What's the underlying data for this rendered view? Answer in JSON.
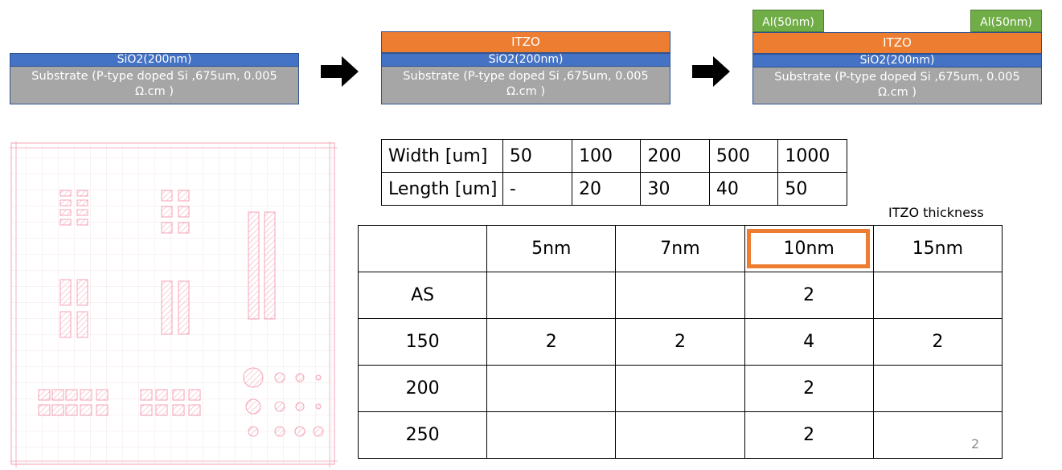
{
  "stacks": [
    {
      "sio2": "SiO2(200nm)",
      "substrate": "Substrate (P-type doped Si ,675um, 0.005 Ω.cm )"
    },
    {
      "itzo": "ITZO",
      "sio2": "SiO2(200nm)",
      "substrate": "Substrate (P-type doped Si ,675um, 0.005 Ω.cm )"
    },
    {
      "al_left": "Al(50nm)",
      "al_right": "Al(50nm)",
      "itzo": "ITZO",
      "sio2": "SiO2(200nm)",
      "substrate": "Substrate (P-type doped Si ,675um, 0.005 Ω.cm )"
    }
  ],
  "dimension_table": {
    "rows": [
      {
        "label": "Width [um]",
        "cells": [
          "50",
          "100",
          "200",
          "500",
          "1000"
        ]
      },
      {
        "label": "Length [um]",
        "cells": [
          "-",
          "20",
          "30",
          "40",
          "50"
        ]
      }
    ]
  },
  "thickness_caption": "ITZO thickness",
  "sample_table": {
    "header": [
      "",
      "5nm",
      "7nm",
      "10nm",
      "15nm"
    ],
    "rows": [
      [
        "AS",
        "",
        "",
        "2",
        ""
      ],
      [
        "150",
        "2",
        "2",
        "4",
        "2"
      ],
      [
        "200",
        "",
        "",
        "2",
        ""
      ],
      [
        "250",
        "",
        "",
        "2",
        ""
      ]
    ],
    "highlighted_column": "10nm"
  },
  "slide_number": "2",
  "colors": {
    "sio2": "#4472c4",
    "substrate": "#a6a6a6",
    "itzo": "#ed7d31",
    "al": "#70ad47",
    "mask_pink": "#f4a3b4"
  }
}
